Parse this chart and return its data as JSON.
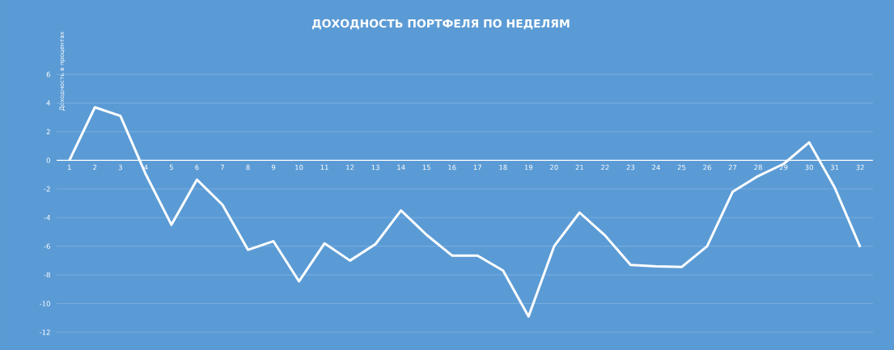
{
  "chart_data": {
    "type": "line",
    "title": "ДОХОДНОСТЬ ПОРТФЕЛЯ ПО НЕДЕЛЯМ",
    "ylabel": "Доходность в процентах",
    "categories": [
      "1",
      "2",
      "3",
      "4",
      "5",
      "6",
      "7",
      "8",
      "9",
      "10",
      "11",
      "12",
      "13",
      "14",
      "15",
      "16",
      "17",
      "18",
      "19",
      "20",
      "21",
      "22",
      "23",
      "24",
      "25",
      "26",
      "27",
      "28",
      "29",
      "30",
      "31",
      "32"
    ],
    "values": [
      0,
      3.7,
      3.1,
      -1.0,
      -4.5,
      -1.35,
      -3.1,
      -6.25,
      -5.65,
      -8.45,
      -5.8,
      -7.0,
      -5.85,
      -3.5,
      -5.2,
      -6.65,
      -6.65,
      -7.7,
      -10.9,
      -6.0,
      -3.65,
      -5.25,
      -7.3,
      -7.4,
      -7.45,
      -6.0,
      -2.2,
      -1.1,
      -0.25,
      1.25,
      -1.9,
      -6.05
    ],
    "color": "#ffffff",
    "ylim": [
      -12,
      6
    ],
    "yticks": [
      -12,
      -10,
      -8,
      -6,
      -4,
      -2,
      0,
      2,
      4,
      6
    ],
    "grid": "y",
    "marker": "none",
    "line_style": "solid"
  }
}
